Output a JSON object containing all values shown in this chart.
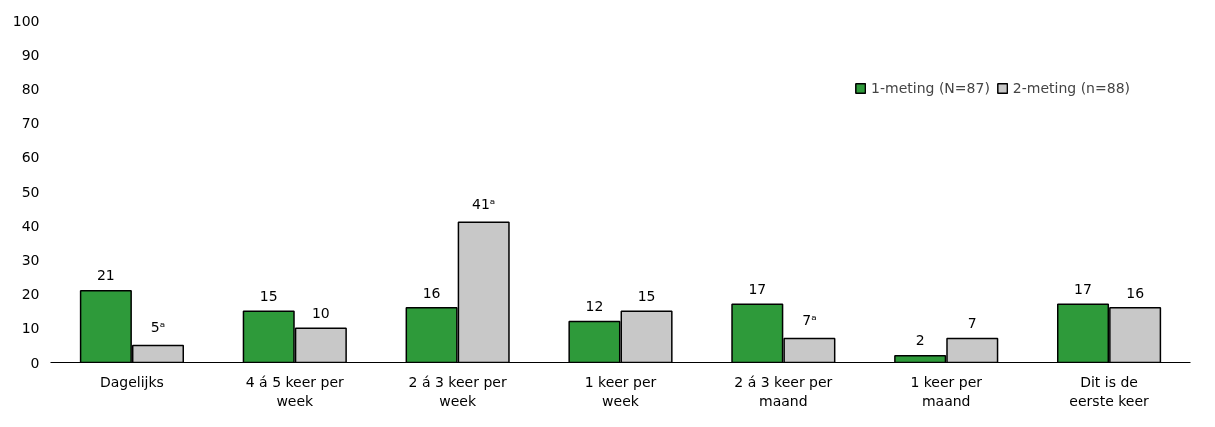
{
  "chart_data": {
    "type": "bar",
    "categories": [
      "Dagelijks",
      "4 á 5 keer per week",
      "2 á 3 keer per week",
      "1 keer per week",
      "2 á 3 keer per maand",
      "1 keer per maand",
      "Dit is de eerste keer"
    ],
    "series": [
      {
        "name": "1-meting (N=87)",
        "color": "#2e9a3a",
        "values": [
          21,
          15,
          16,
          12,
          17,
          2,
          17
        ],
        "value_labels": [
          "21",
          "15",
          "16",
          "12",
          "17",
          "2",
          "17"
        ]
      },
      {
        "name": "2-meting (n=88)",
        "color": "#c8c8c8",
        "values": [
          5,
          10,
          41,
          15,
          7,
          7,
          16
        ],
        "value_labels": [
          "5ᵃ",
          "10",
          "41ᵃ",
          "15",
          "7ᵃ",
          "7",
          "16"
        ]
      }
    ],
    "ylim": [
      0,
      100
    ],
    "yticks": [
      0,
      10,
      20,
      30,
      40,
      50,
      60,
      70,
      80,
      90,
      100
    ],
    "grid": false,
    "legend": "top right"
  }
}
